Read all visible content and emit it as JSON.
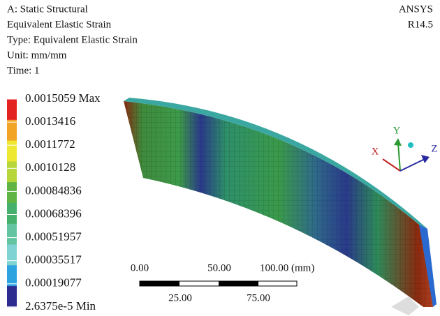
{
  "header": {
    "lines": [
      "A: Static Structural",
      "Equivalent Elastic Strain",
      "Type: Equivalent Elastic Strain",
      "Unit: mm/mm",
      "Time: 1"
    ],
    "product": "ANSYS",
    "version": "R14.5"
  },
  "legend": {
    "labels": [
      "0.0015059 Max",
      "0.0013416",
      "0.0011772",
      "0.0010128",
      "0.00084836",
      "0.00068396",
      "0.00051957",
      "0.00035517",
      "0.00019077",
      "2.6375e-5 Min"
    ],
    "colors": [
      "#e3231f",
      "#f2a427",
      "#efe832",
      "#b6d63a",
      "#5fb444",
      "#45b16c",
      "#63c4a2",
      "#7fd3d3",
      "#2da3e0",
      "#2e2c8f"
    ]
  },
  "scale": {
    "top": [
      "0.00",
      "50.00",
      "100.00 (mm)"
    ],
    "bottom": [
      "25.00",
      "75.00"
    ]
  },
  "triad": {
    "x": "X",
    "y": "Y",
    "z": "Z"
  }
}
